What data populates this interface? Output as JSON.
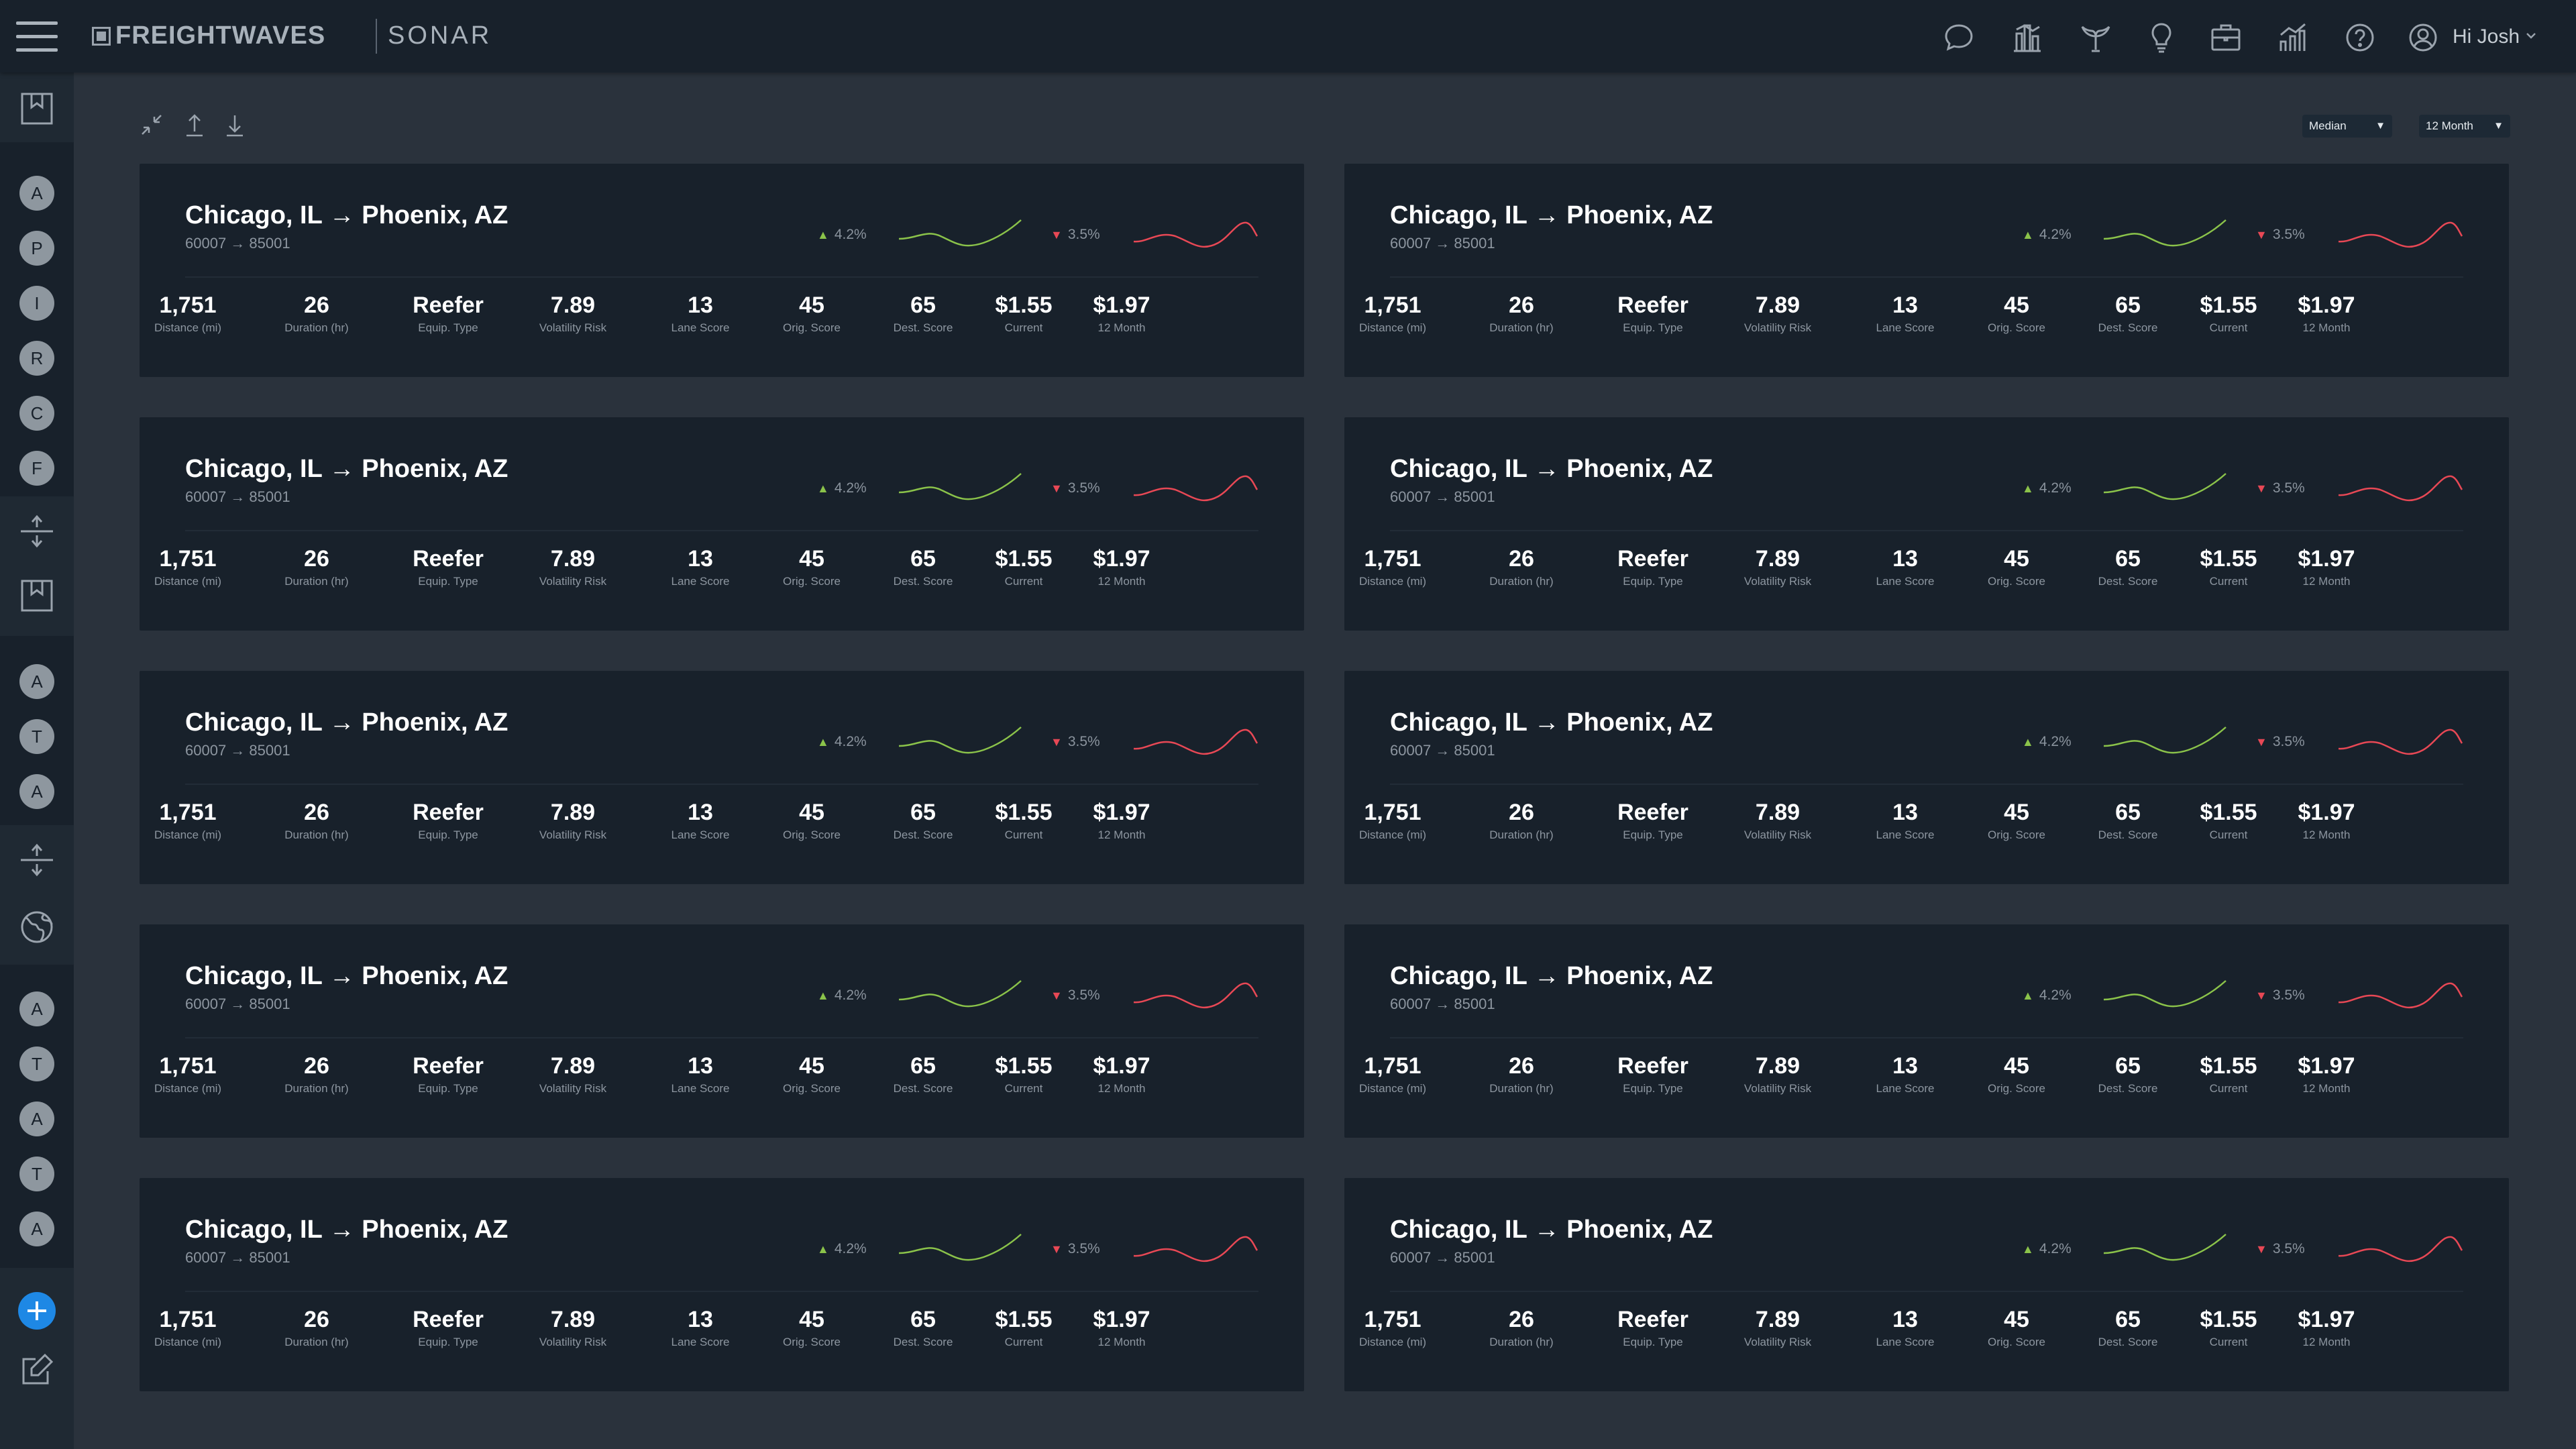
{
  "header": {
    "brand": "FREIGHTWAVES",
    "product": "SONAR",
    "user_greeting": "Hi Josh",
    "icons": [
      "chat-icon",
      "bar-chart-icon",
      "whale-icon",
      "lightbulb-icon",
      "briefcase-icon",
      "analytics-icon",
      "help-icon",
      "user-icon"
    ]
  },
  "sidebar": {
    "group1": [
      "A",
      "P",
      "I",
      "R",
      "C",
      "F"
    ],
    "group2": [
      "A",
      "T",
      "A"
    ],
    "group3": [
      "A",
      "T",
      "A",
      "T",
      "A"
    ]
  },
  "toolbar": {
    "stat_select": "Median",
    "period_select": "12 Month"
  },
  "colors": {
    "trend_up": "#8bc34a",
    "trend_down": "#e84855",
    "accent": "#1e88e5"
  },
  "lanes": [
    {
      "title": "Chicago, IL → Phoenix, AZ",
      "codes": "60007 → 85001",
      "trend_up": "4.2%",
      "trend_down": "3.5%",
      "metrics": [
        {
          "value": "1,751",
          "label": "Distance (mi)"
        },
        {
          "value": "26",
          "label": "Duration (hr)"
        },
        {
          "value": "Reefer",
          "label": "Equip. Type"
        },
        {
          "value": "7.89",
          "label": "Volatility Risk"
        },
        {
          "value": "13",
          "label": "Lane Score"
        },
        {
          "value": "45",
          "label": "Orig. Score"
        },
        {
          "value": "65",
          "label": "Dest. Score"
        },
        {
          "value": "$1.55",
          "label": "Current"
        },
        {
          "value": "$1.97",
          "label": "12 Month"
        }
      ]
    },
    {
      "title": "Chicago, IL → Phoenix, AZ",
      "codes": "60007 → 85001",
      "trend_up": "4.2%",
      "trend_down": "3.5%",
      "metrics": [
        {
          "value": "1,751",
          "label": "Distance (mi)"
        },
        {
          "value": "26",
          "label": "Duration (hr)"
        },
        {
          "value": "Reefer",
          "label": "Equip. Type"
        },
        {
          "value": "7.89",
          "label": "Volatility Risk"
        },
        {
          "value": "13",
          "label": "Lane Score"
        },
        {
          "value": "45",
          "label": "Orig. Score"
        },
        {
          "value": "65",
          "label": "Dest. Score"
        },
        {
          "value": "$1.55",
          "label": "Current"
        },
        {
          "value": "$1.97",
          "label": "12 Month"
        }
      ]
    },
    {
      "title": "Chicago, IL → Phoenix, AZ",
      "codes": "60007 → 85001",
      "trend_up": "4.2%",
      "trend_down": "3.5%",
      "metrics": [
        {
          "value": "1,751",
          "label": "Distance (mi)"
        },
        {
          "value": "26",
          "label": "Duration (hr)"
        },
        {
          "value": "Reefer",
          "label": "Equip. Type"
        },
        {
          "value": "7.89",
          "label": "Volatility Risk"
        },
        {
          "value": "13",
          "label": "Lane Score"
        },
        {
          "value": "45",
          "label": "Orig. Score"
        },
        {
          "value": "65",
          "label": "Dest. Score"
        },
        {
          "value": "$1.55",
          "label": "Current"
        },
        {
          "value": "$1.97",
          "label": "12 Month"
        }
      ]
    },
    {
      "title": "Chicago, IL → Phoenix, AZ",
      "codes": "60007 → 85001",
      "trend_up": "4.2%",
      "trend_down": "3.5%",
      "metrics": [
        {
          "value": "1,751",
          "label": "Distance (mi)"
        },
        {
          "value": "26",
          "label": "Duration (hr)"
        },
        {
          "value": "Reefer",
          "label": "Equip. Type"
        },
        {
          "value": "7.89",
          "label": "Volatility Risk"
        },
        {
          "value": "13",
          "label": "Lane Score"
        },
        {
          "value": "45",
          "label": "Orig. Score"
        },
        {
          "value": "65",
          "label": "Dest. Score"
        },
        {
          "value": "$1.55",
          "label": "Current"
        },
        {
          "value": "$1.97",
          "label": "12 Month"
        }
      ]
    },
    {
      "title": "Chicago, IL → Phoenix, AZ",
      "codes": "60007 → 85001",
      "trend_up": "4.2%",
      "trend_down": "3.5%",
      "metrics": [
        {
          "value": "1,751",
          "label": "Distance (mi)"
        },
        {
          "value": "26",
          "label": "Duration (hr)"
        },
        {
          "value": "Reefer",
          "label": "Equip. Type"
        },
        {
          "value": "7.89",
          "label": "Volatility Risk"
        },
        {
          "value": "13",
          "label": "Lane Score"
        },
        {
          "value": "45",
          "label": "Orig. Score"
        },
        {
          "value": "65",
          "label": "Dest. Score"
        },
        {
          "value": "$1.55",
          "label": "Current"
        },
        {
          "value": "$1.97",
          "label": "12 Month"
        }
      ]
    },
    {
      "title": "Chicago, IL → Phoenix, AZ",
      "codes": "60007 → 85001",
      "trend_up": "4.2%",
      "trend_down": "3.5%",
      "metrics": [
        {
          "value": "1,751",
          "label": "Distance (mi)"
        },
        {
          "value": "26",
          "label": "Duration (hr)"
        },
        {
          "value": "Reefer",
          "label": "Equip. Type"
        },
        {
          "value": "7.89",
          "label": "Volatility Risk"
        },
        {
          "value": "13",
          "label": "Lane Score"
        },
        {
          "value": "45",
          "label": "Orig. Score"
        },
        {
          "value": "65",
          "label": "Dest. Score"
        },
        {
          "value": "$1.55",
          "label": "Current"
        },
        {
          "value": "$1.97",
          "label": "12 Month"
        }
      ]
    },
    {
      "title": "Chicago, IL → Phoenix, AZ",
      "codes": "60007 → 85001",
      "trend_up": "4.2%",
      "trend_down": "3.5%",
      "metrics": [
        {
          "value": "1,751",
          "label": "Distance (mi)"
        },
        {
          "value": "26",
          "label": "Duration (hr)"
        },
        {
          "value": "Reefer",
          "label": "Equip. Type"
        },
        {
          "value": "7.89",
          "label": "Volatility Risk"
        },
        {
          "value": "13",
          "label": "Lane Score"
        },
        {
          "value": "45",
          "label": "Orig. Score"
        },
        {
          "value": "65",
          "label": "Dest. Score"
        },
        {
          "value": "$1.55",
          "label": "Current"
        },
        {
          "value": "$1.97",
          "label": "12 Month"
        }
      ]
    },
    {
      "title": "Chicago, IL → Phoenix, AZ",
      "codes": "60007 → 85001",
      "trend_up": "4.2%",
      "trend_down": "3.5%",
      "metrics": [
        {
          "value": "1,751",
          "label": "Distance (mi)"
        },
        {
          "value": "26",
          "label": "Duration (hr)"
        },
        {
          "value": "Reefer",
          "label": "Equip. Type"
        },
        {
          "value": "7.89",
          "label": "Volatility Risk"
        },
        {
          "value": "13",
          "label": "Lane Score"
        },
        {
          "value": "45",
          "label": "Orig. Score"
        },
        {
          "value": "65",
          "label": "Dest. Score"
        },
        {
          "value": "$1.55",
          "label": "Current"
        },
        {
          "value": "$1.97",
          "label": "12 Month"
        }
      ]
    },
    {
      "title": "Chicago, IL → Phoenix, AZ",
      "codes": "60007 → 85001",
      "trend_up": "4.2%",
      "trend_down": "3.5%",
      "metrics": [
        {
          "value": "1,751",
          "label": "Distance (mi)"
        },
        {
          "value": "26",
          "label": "Duration (hr)"
        },
        {
          "value": "Reefer",
          "label": "Equip. Type"
        },
        {
          "value": "7.89",
          "label": "Volatility Risk"
        },
        {
          "value": "13",
          "label": "Lane Score"
        },
        {
          "value": "45",
          "label": "Orig. Score"
        },
        {
          "value": "65",
          "label": "Dest. Score"
        },
        {
          "value": "$1.55",
          "label": "Current"
        },
        {
          "value": "$1.97",
          "label": "12 Month"
        }
      ]
    },
    {
      "title": "Chicago, IL → Phoenix, AZ",
      "codes": "60007 → 85001",
      "trend_up": "4.2%",
      "trend_down": "3.5%",
      "metrics": [
        {
          "value": "1,751",
          "label": "Distance (mi)"
        },
        {
          "value": "26",
          "label": "Duration (hr)"
        },
        {
          "value": "Reefer",
          "label": "Equip. Type"
        },
        {
          "value": "7.89",
          "label": "Volatility Risk"
        },
        {
          "value": "13",
          "label": "Lane Score"
        },
        {
          "value": "45",
          "label": "Orig. Score"
        },
        {
          "value": "65",
          "label": "Dest. Score"
        },
        {
          "value": "$1.55",
          "label": "Current"
        },
        {
          "value": "$1.97",
          "label": "12 Month"
        }
      ]
    }
  ]
}
